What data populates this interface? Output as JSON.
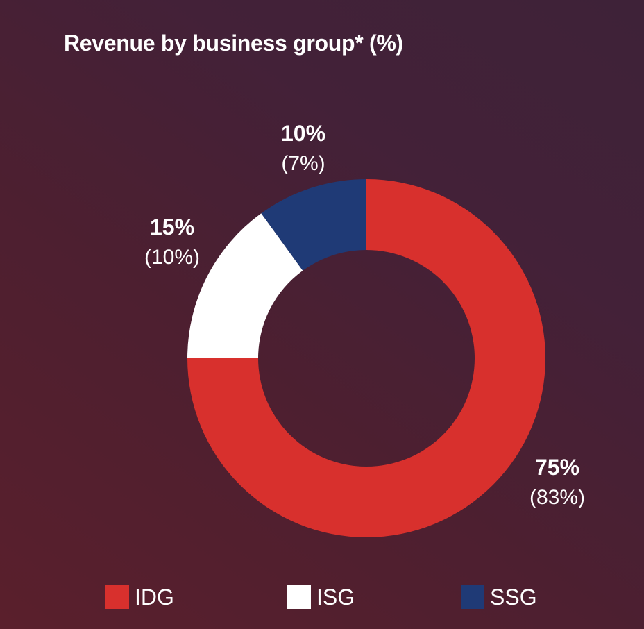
{
  "title": "Revenue by business group* (%)",
  "chart_data": {
    "type": "pie",
    "donut": true,
    "title": "Revenue by business group* (%)",
    "series": [
      {
        "name": "IDG",
        "value": 75,
        "label": "75%",
        "secondary_label": "(83%)",
        "color": "#d8302d"
      },
      {
        "name": "ISG",
        "value": 15,
        "label": "15%",
        "secondary_label": "(10%)",
        "color": "#ffffff"
      },
      {
        "name": "SSG",
        "value": 10,
        "label": "10%",
        "secondary_label": "(7%)",
        "color": "#1f3a76"
      }
    ],
    "legend_position": "bottom"
  }
}
